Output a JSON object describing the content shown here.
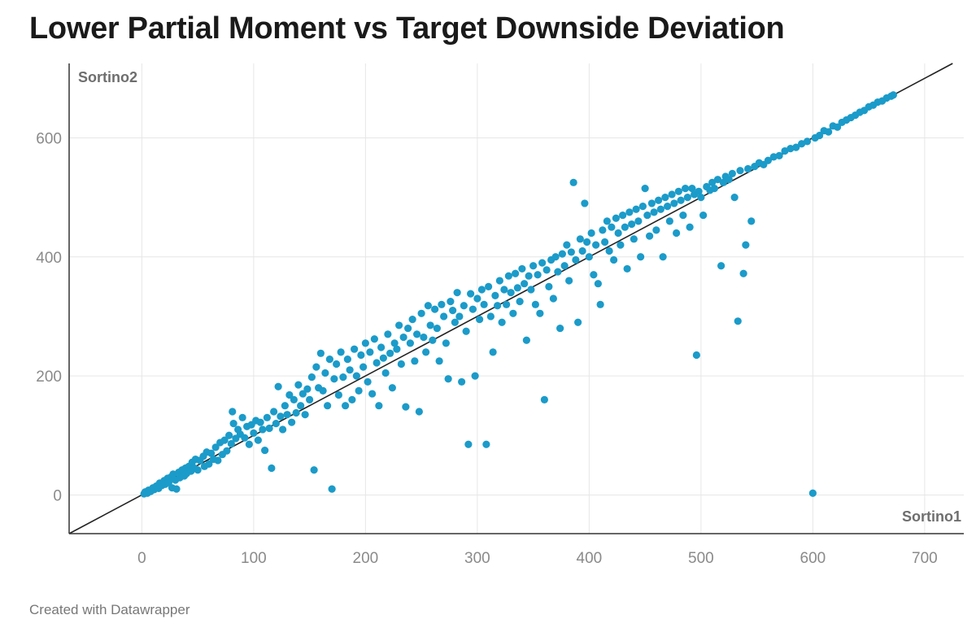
{
  "chart_data": {
    "type": "scatter",
    "title": "Lower Partial Moment vs Target Downside Deviation",
    "footer": "Created with Datawrapper",
    "xlabel": "Sortino1",
    "ylabel": "Sortino2",
    "xlim": [
      -65,
      735
    ],
    "ylim": [
      -65,
      725
    ],
    "x_ticks": [
      0,
      100,
      200,
      300,
      400,
      500,
      600,
      700
    ],
    "y_ticks": [
      0,
      200,
      400,
      600
    ],
    "grid": true,
    "reference_line": {
      "slope": 1,
      "intercept": 0,
      "color": "#222222"
    },
    "colors": {
      "point": "#1b9bc9",
      "grid": "#e6e6e6",
      "axis": "#333333"
    },
    "points": [
      [
        2,
        2
      ],
      [
        3,
        5
      ],
      [
        5,
        3
      ],
      [
        6,
        8
      ],
      [
        8,
        6
      ],
      [
        10,
        12
      ],
      [
        11,
        9
      ],
      [
        13,
        15
      ],
      [
        15,
        11
      ],
      [
        16,
        20
      ],
      [
        18,
        16
      ],
      [
        20,
        24
      ],
      [
        21,
        18
      ],
      [
        23,
        28
      ],
      [
        24,
        21
      ],
      [
        26,
        30
      ],
      [
        27,
        12
      ],
      [
        28,
        35
      ],
      [
        30,
        25
      ],
      [
        31,
        10
      ],
      [
        33,
        38
      ],
      [
        34,
        29
      ],
      [
        36,
        42
      ],
      [
        38,
        32
      ],
      [
        39,
        45
      ],
      [
        40,
        36
      ],
      [
        42,
        48
      ],
      [
        44,
        40
      ],
      [
        45,
        55
      ],
      [
        47,
        45
      ],
      [
        48,
        60
      ],
      [
        50,
        42
      ],
      [
        52,
        58
      ],
      [
        55,
        65
      ],
      [
        56,
        48
      ],
      [
        58,
        72
      ],
      [
        60,
        52
      ],
      [
        62,
        70
      ],
      [
        64,
        60
      ],
      [
        66,
        80
      ],
      [
        68,
        58
      ],
      [
        70,
        88
      ],
      [
        72,
        68
      ],
      [
        74,
        92
      ],
      [
        76,
        74
      ],
      [
        78,
        100
      ],
      [
        80,
        86
      ],
      [
        81,
        140
      ],
      [
        82,
        120
      ],
      [
        84,
        95
      ],
      [
        86,
        110
      ],
      [
        88,
        102
      ],
      [
        90,
        130
      ],
      [
        92,
        96
      ],
      [
        94,
        115
      ],
      [
        96,
        85
      ],
      [
        98,
        118
      ],
      [
        100,
        104
      ],
      [
        102,
        125
      ],
      [
        104,
        92
      ],
      [
        106,
        122
      ],
      [
        108,
        110
      ],
      [
        110,
        75
      ],
      [
        112,
        130
      ],
      [
        114,
        112
      ],
      [
        116,
        45
      ],
      [
        118,
        140
      ],
      [
        120,
        120
      ],
      [
        122,
        182
      ],
      [
        124,
        132
      ],
      [
        126,
        110
      ],
      [
        128,
        150
      ],
      [
        130,
        135
      ],
      [
        132,
        168
      ],
      [
        134,
        122
      ],
      [
        136,
        160
      ],
      [
        138,
        138
      ],
      [
        140,
        185
      ],
      [
        142,
        150
      ],
      [
        144,
        170
      ],
      [
        146,
        135
      ],
      [
        148,
        178
      ],
      [
        150,
        160
      ],
      [
        152,
        198
      ],
      [
        154,
        42
      ],
      [
        156,
        215
      ],
      [
        158,
        180
      ],
      [
        160,
        238
      ],
      [
        162,
        175
      ],
      [
        164,
        205
      ],
      [
        166,
        150
      ],
      [
        168,
        228
      ],
      [
        170,
        10
      ],
      [
        172,
        195
      ],
      [
        174,
        220
      ],
      [
        176,
        168
      ],
      [
        178,
        240
      ],
      [
        180,
        198
      ],
      [
        182,
        150
      ],
      [
        184,
        228
      ],
      [
        186,
        210
      ],
      [
        188,
        160
      ],
      [
        190,
        245
      ],
      [
        192,
        200
      ],
      [
        194,
        175
      ],
      [
        196,
        235
      ],
      [
        198,
        215
      ],
      [
        200,
        255
      ],
      [
        202,
        190
      ],
      [
        204,
        240
      ],
      [
        206,
        170
      ],
      [
        208,
        262
      ],
      [
        210,
        222
      ],
      [
        212,
        150
      ],
      [
        214,
        248
      ],
      [
        216,
        230
      ],
      [
        218,
        205
      ],
      [
        220,
        270
      ],
      [
        222,
        238
      ],
      [
        224,
        180
      ],
      [
        226,
        255
      ],
      [
        228,
        245
      ],
      [
        230,
        285
      ],
      [
        232,
        220
      ],
      [
        234,
        265
      ],
      [
        236,
        148
      ],
      [
        238,
        280
      ],
      [
        240,
        255
      ],
      [
        242,
        295
      ],
      [
        244,
        225
      ],
      [
        246,
        270
      ],
      [
        248,
        140
      ],
      [
        250,
        305
      ],
      [
        252,
        265
      ],
      [
        254,
        240
      ],
      [
        256,
        318
      ],
      [
        258,
        285
      ],
      [
        260,
        260
      ],
      [
        262,
        312
      ],
      [
        264,
        280
      ],
      [
        266,
        225
      ],
      [
        268,
        320
      ],
      [
        270,
        300
      ],
      [
        272,
        255
      ],
      [
        274,
        195
      ],
      [
        276,
        325
      ],
      [
        278,
        310
      ],
      [
        280,
        290
      ],
      [
        282,
        340
      ],
      [
        284,
        300
      ],
      [
        286,
        190
      ],
      [
        288,
        318
      ],
      [
        290,
        275
      ],
      [
        292,
        85
      ],
      [
        294,
        338
      ],
      [
        296,
        312
      ],
      [
        298,
        200
      ],
      [
        300,
        330
      ],
      [
        302,
        295
      ],
      [
        304,
        345
      ],
      [
        306,
        320
      ],
      [
        308,
        85
      ],
      [
        310,
        350
      ],
      [
        312,
        300
      ],
      [
        314,
        240
      ],
      [
        316,
        335
      ],
      [
        318,
        318
      ],
      [
        320,
        360
      ],
      [
        322,
        290
      ],
      [
        324,
        345
      ],
      [
        326,
        320
      ],
      [
        328,
        368
      ],
      [
        330,
        340
      ],
      [
        332,
        305
      ],
      [
        334,
        372
      ],
      [
        336,
        348
      ],
      [
        338,
        325
      ],
      [
        340,
        380
      ],
      [
        342,
        355
      ],
      [
        344,
        260
      ],
      [
        346,
        368
      ],
      [
        348,
        345
      ],
      [
        350,
        385
      ],
      [
        352,
        320
      ],
      [
        354,
        370
      ],
      [
        356,
        305
      ],
      [
        358,
        390
      ],
      [
        360,
        160
      ],
      [
        362,
        378
      ],
      [
        364,
        350
      ],
      [
        366,
        395
      ],
      [
        368,
        330
      ],
      [
        370,
        400
      ],
      [
        372,
        375
      ],
      [
        374,
        280
      ],
      [
        376,
        405
      ],
      [
        378,
        385
      ],
      [
        380,
        420
      ],
      [
        382,
        360
      ],
      [
        384,
        408
      ],
      [
        386,
        525
      ],
      [
        388,
        395
      ],
      [
        390,
        290
      ],
      [
        392,
        430
      ],
      [
        394,
        410
      ],
      [
        396,
        490
      ],
      [
        398,
        425
      ],
      [
        400,
        400
      ],
      [
        402,
        440
      ],
      [
        404,
        370
      ],
      [
        406,
        420
      ],
      [
        408,
        355
      ],
      [
        410,
        320
      ],
      [
        412,
        445
      ],
      [
        414,
        425
      ],
      [
        416,
        460
      ],
      [
        418,
        410
      ],
      [
        420,
        450
      ],
      [
        422,
        395
      ],
      [
        424,
        465
      ],
      [
        426,
        440
      ],
      [
        428,
        420
      ],
      [
        430,
        470
      ],
      [
        432,
        450
      ],
      [
        434,
        380
      ],
      [
        436,
        475
      ],
      [
        438,
        455
      ],
      [
        440,
        430
      ],
      [
        442,
        480
      ],
      [
        444,
        460
      ],
      [
        446,
        400
      ],
      [
        448,
        485
      ],
      [
        450,
        515
      ],
      [
        452,
        470
      ],
      [
        454,
        435
      ],
      [
        456,
        490
      ],
      [
        458,
        475
      ],
      [
        460,
        445
      ],
      [
        462,
        495
      ],
      [
        464,
        480
      ],
      [
        466,
        400
      ],
      [
        468,
        500
      ],
      [
        470,
        485
      ],
      [
        472,
        460
      ],
      [
        474,
        505
      ],
      [
        476,
        490
      ],
      [
        478,
        440
      ],
      [
        480,
        510
      ],
      [
        482,
        495
      ],
      [
        484,
        470
      ],
      [
        486,
        515
      ],
      [
        488,
        500
      ],
      [
        490,
        450
      ],
      [
        492,
        515
      ],
      [
        494,
        505
      ],
      [
        496,
        235
      ],
      [
        498,
        510
      ],
      [
        500,
        500
      ],
      [
        502,
        470
      ],
      [
        505,
        518
      ],
      [
        508,
        512
      ],
      [
        510,
        525
      ],
      [
        512,
        515
      ],
      [
        515,
        530
      ],
      [
        518,
        385
      ],
      [
        520,
        525
      ],
      [
        522,
        535
      ],
      [
        525,
        530
      ],
      [
        528,
        540
      ],
      [
        530,
        500
      ],
      [
        533,
        292
      ],
      [
        535,
        545
      ],
      [
        538,
        372
      ],
      [
        540,
        420
      ],
      [
        542,
        548
      ],
      [
        545,
        460
      ],
      [
        548,
        552
      ],
      [
        552,
        558
      ],
      [
        556,
        555
      ],
      [
        560,
        562
      ],
      [
        565,
        568
      ],
      [
        570,
        570
      ],
      [
        575,
        578
      ],
      [
        580,
        582
      ],
      [
        585,
        584
      ],
      [
        590,
        590
      ],
      [
        595,
        594
      ],
      [
        600,
        3
      ],
      [
        602,
        600
      ],
      [
        606,
        604
      ],
      [
        610,
        612
      ],
      [
        614,
        610
      ],
      [
        618,
        620
      ],
      [
        622,
        618
      ],
      [
        626,
        626
      ],
      [
        630,
        630
      ],
      [
        634,
        634
      ],
      [
        638,
        638
      ],
      [
        642,
        643
      ],
      [
        646,
        646
      ],
      [
        650,
        652
      ],
      [
        654,
        655
      ],
      [
        658,
        660
      ],
      [
        662,
        662
      ],
      [
        666,
        667
      ],
      [
        670,
        670
      ],
      [
        672,
        672
      ]
    ]
  }
}
